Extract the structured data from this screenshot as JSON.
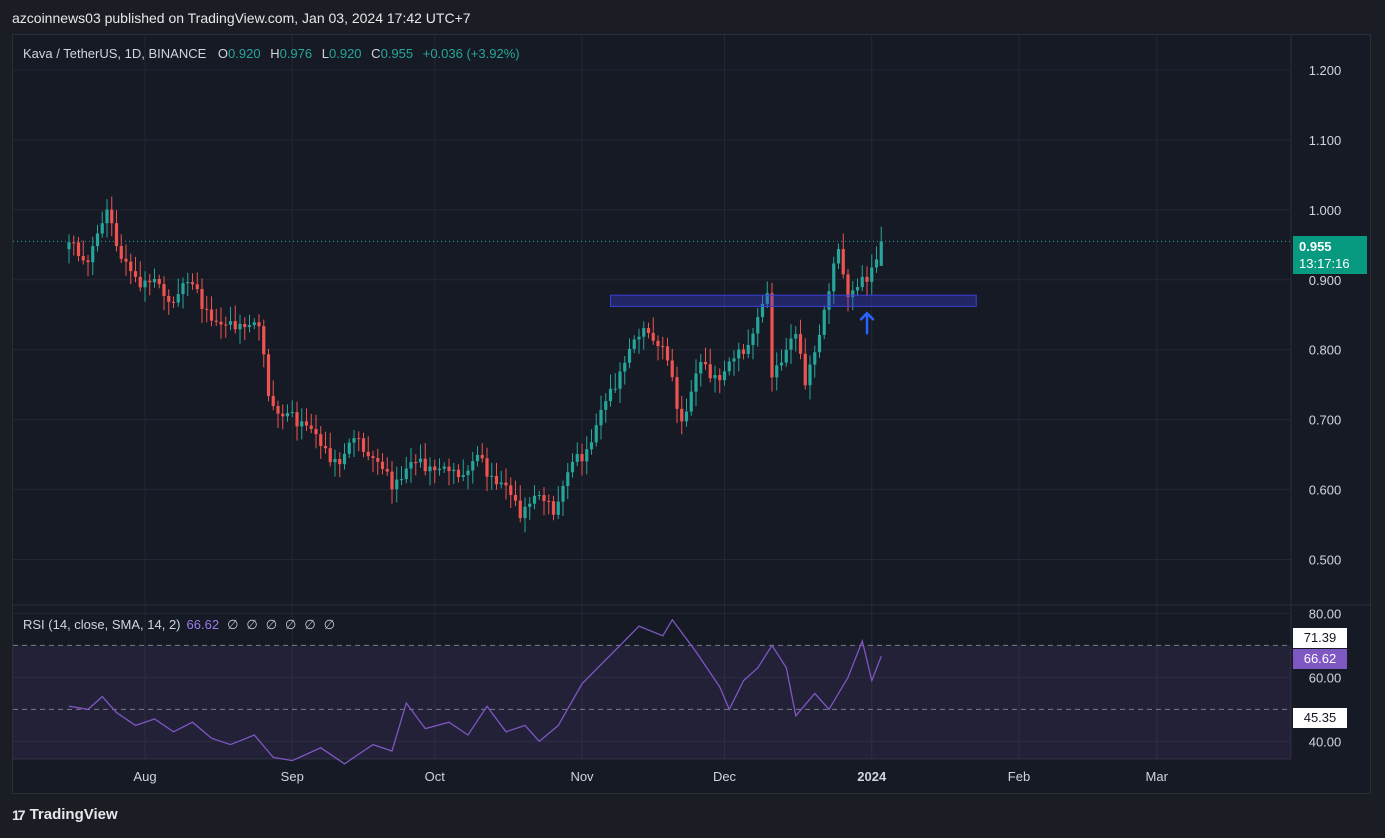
{
  "header": {
    "published_text": "azcoinnews03 published on TradingView.com, Jan 03, 2024 17:42 UTC+7"
  },
  "legend": {
    "symbol": "Kava / TetherUS, 1D, BINANCE",
    "o_key": "O",
    "o_val": "0.920",
    "h_key": "H",
    "h_val": "0.976",
    "l_key": "L",
    "l_val": "0.920",
    "c_key": "C",
    "c_val": "0.955",
    "change": "+0.036 (+3.92%)"
  },
  "price_label": {
    "price": "0.955",
    "timer": "13:17:16"
  },
  "rsi_legend": {
    "text": "RSI (14, close, SMA, 14, 2)",
    "value": "66.62",
    "nulls": [
      "∅",
      "∅",
      "∅",
      "∅",
      "∅",
      "∅"
    ]
  },
  "rsi_boxes": {
    "upper": "71.39",
    "current": "66.62",
    "lower": "45.35"
  },
  "footer": {
    "logo_text": "TradingView",
    "logo_icon": "tradingview-logo-icon"
  },
  "colors": {
    "up": "#26a69a",
    "down": "#ef5350",
    "rsi": "#7e57c2",
    "zone": "#3b3fd9"
  },
  "chart_data": [
    {
      "type": "candlestick",
      "price_axis": {
        "ticks": [
          "1.200",
          "1.100",
          "1.000",
          "0.900",
          "0.800",
          "0.700",
          "0.600",
          "0.500"
        ],
        "ylim": [
          0.435,
          1.25
        ]
      },
      "time_axis": {
        "ticks": [
          "Aug",
          "Sep",
          "Oct",
          "Nov",
          "Dec",
          "2024",
          "Feb",
          "Mar"
        ]
      },
      "close_path": [
        [
          "2023-07-16",
          0.95
        ],
        [
          "2023-07-20",
          0.93
        ],
        [
          "2023-07-23",
          0.97
        ],
        [
          "2023-07-24",
          1.01
        ],
        [
          "2023-07-27",
          0.93
        ],
        [
          "2023-07-30",
          0.9
        ],
        [
          "2023-08-03",
          0.9
        ],
        [
          "2023-08-06",
          0.86
        ],
        [
          "2023-08-09",
          0.9
        ],
        [
          "2023-08-14",
          0.86
        ],
        [
          "2023-08-17",
          0.83
        ],
        [
          "2023-08-20",
          0.84
        ],
        [
          "2023-08-25",
          0.83
        ],
        [
          "2023-08-27",
          0.74
        ],
        [
          "2023-08-30",
          0.7
        ],
        [
          "2023-09-04",
          0.7
        ],
        [
          "2023-09-07",
          0.66
        ],
        [
          "2023-09-11",
          0.64
        ],
        [
          "2023-09-14",
          0.67
        ],
        [
          "2023-09-18",
          0.65
        ],
        [
          "2023-09-20",
          0.62
        ],
        [
          "2023-09-22",
          0.61
        ],
        [
          "2023-09-25",
          0.63
        ],
        [
          "2023-09-28",
          0.64
        ],
        [
          "2023-10-05",
          0.62
        ],
        [
          "2023-10-10",
          0.64
        ],
        [
          "2023-10-15",
          0.61
        ],
        [
          "2023-10-19",
          0.57
        ],
        [
          "2023-10-22",
          0.59
        ],
        [
          "2023-10-26",
          0.57
        ],
        [
          "2023-10-28",
          0.61
        ],
        [
          "2023-11-02",
          0.66
        ],
        [
          "2023-11-07",
          0.74
        ],
        [
          "2023-11-11",
          0.8
        ],
        [
          "2023-11-15",
          0.83
        ],
        [
          "2023-11-18",
          0.8
        ],
        [
          "2023-11-22",
          0.7
        ],
        [
          "2023-11-26",
          0.78
        ],
        [
          "2023-11-30",
          0.76
        ],
        [
          "2023-12-05",
          0.8
        ],
        [
          "2023-12-10",
          0.87
        ],
        [
          "2023-12-11",
          0.77
        ],
        [
          "2023-12-14",
          0.8
        ],
        [
          "2023-12-16",
          0.82
        ],
        [
          "2023-12-18",
          0.76
        ],
        [
          "2023-12-21",
          0.82
        ],
        [
          "2023-12-23",
          0.88
        ],
        [
          "2023-12-25",
          0.95
        ],
        [
          "2023-12-27",
          0.88
        ],
        [
          "2023-12-29",
          0.88
        ],
        [
          "2024-01-01",
          0.92
        ],
        [
          "2024-01-03",
          0.955
        ]
      ],
      "last_price": 0.955,
      "zone": {
        "x_start": "2023-11-07",
        "x_end": "2024-01-23",
        "y_low": 0.862,
        "y_high": 0.878
      },
      "arrow": {
        "x": "2023-12-31",
        "y": 0.835
      }
    },
    {
      "type": "line",
      "name": "RSI (14, close, SMA, 14, 2)",
      "ylim": [
        34.5,
        82
      ],
      "axis_ticks": [
        "80.00",
        "60.00",
        "40.00"
      ],
      "bands": [
        70,
        50
      ],
      "points": [
        [
          "2023-07-16",
          51
        ],
        [
          "2023-07-20",
          50
        ],
        [
          "2023-07-23",
          54
        ],
        [
          "2023-07-26",
          49
        ],
        [
          "2023-07-30",
          45
        ],
        [
          "2023-08-03",
          47
        ],
        [
          "2023-08-07",
          43
        ],
        [
          "2023-08-11",
          46
        ],
        [
          "2023-08-15",
          41
        ],
        [
          "2023-08-19",
          39
        ],
        [
          "2023-08-24",
          42
        ],
        [
          "2023-08-28",
          35
        ],
        [
          "2023-09-01",
          34
        ],
        [
          "2023-09-07",
          38
        ],
        [
          "2023-09-12",
          33
        ],
        [
          "2023-09-18",
          39
        ],
        [
          "2023-09-22",
          37
        ],
        [
          "2023-09-25",
          52
        ],
        [
          "2023-09-29",
          44
        ],
        [
          "2023-10-04",
          46
        ],
        [
          "2023-10-08",
          42
        ],
        [
          "2023-10-12",
          51
        ],
        [
          "2023-10-16",
          43
        ],
        [
          "2023-10-20",
          45
        ],
        [
          "2023-10-23",
          40
        ],
        [
          "2023-10-27",
          45
        ],
        [
          "2023-11-01",
          58
        ],
        [
          "2023-11-05",
          64
        ],
        [
          "2023-11-09",
          70
        ],
        [
          "2023-11-13",
          76
        ],
        [
          "2023-11-18",
          73
        ],
        [
          "2023-11-20",
          78
        ],
        [
          "2023-11-25",
          68
        ],
        [
          "2023-11-30",
          57
        ],
        [
          "2023-12-02",
          50
        ],
        [
          "2023-12-05",
          59
        ],
        [
          "2023-12-08",
          63
        ],
        [
          "2023-12-11",
          70
        ],
        [
          "2023-12-14",
          63
        ],
        [
          "2023-12-16",
          48
        ],
        [
          "2023-12-20",
          55
        ],
        [
          "2023-12-23",
          50
        ],
        [
          "2023-12-27",
          60
        ],
        [
          "2023-12-30",
          71.39
        ],
        [
          "2024-01-01",
          59
        ],
        [
          "2024-01-03",
          66.62
        ]
      ]
    }
  ]
}
